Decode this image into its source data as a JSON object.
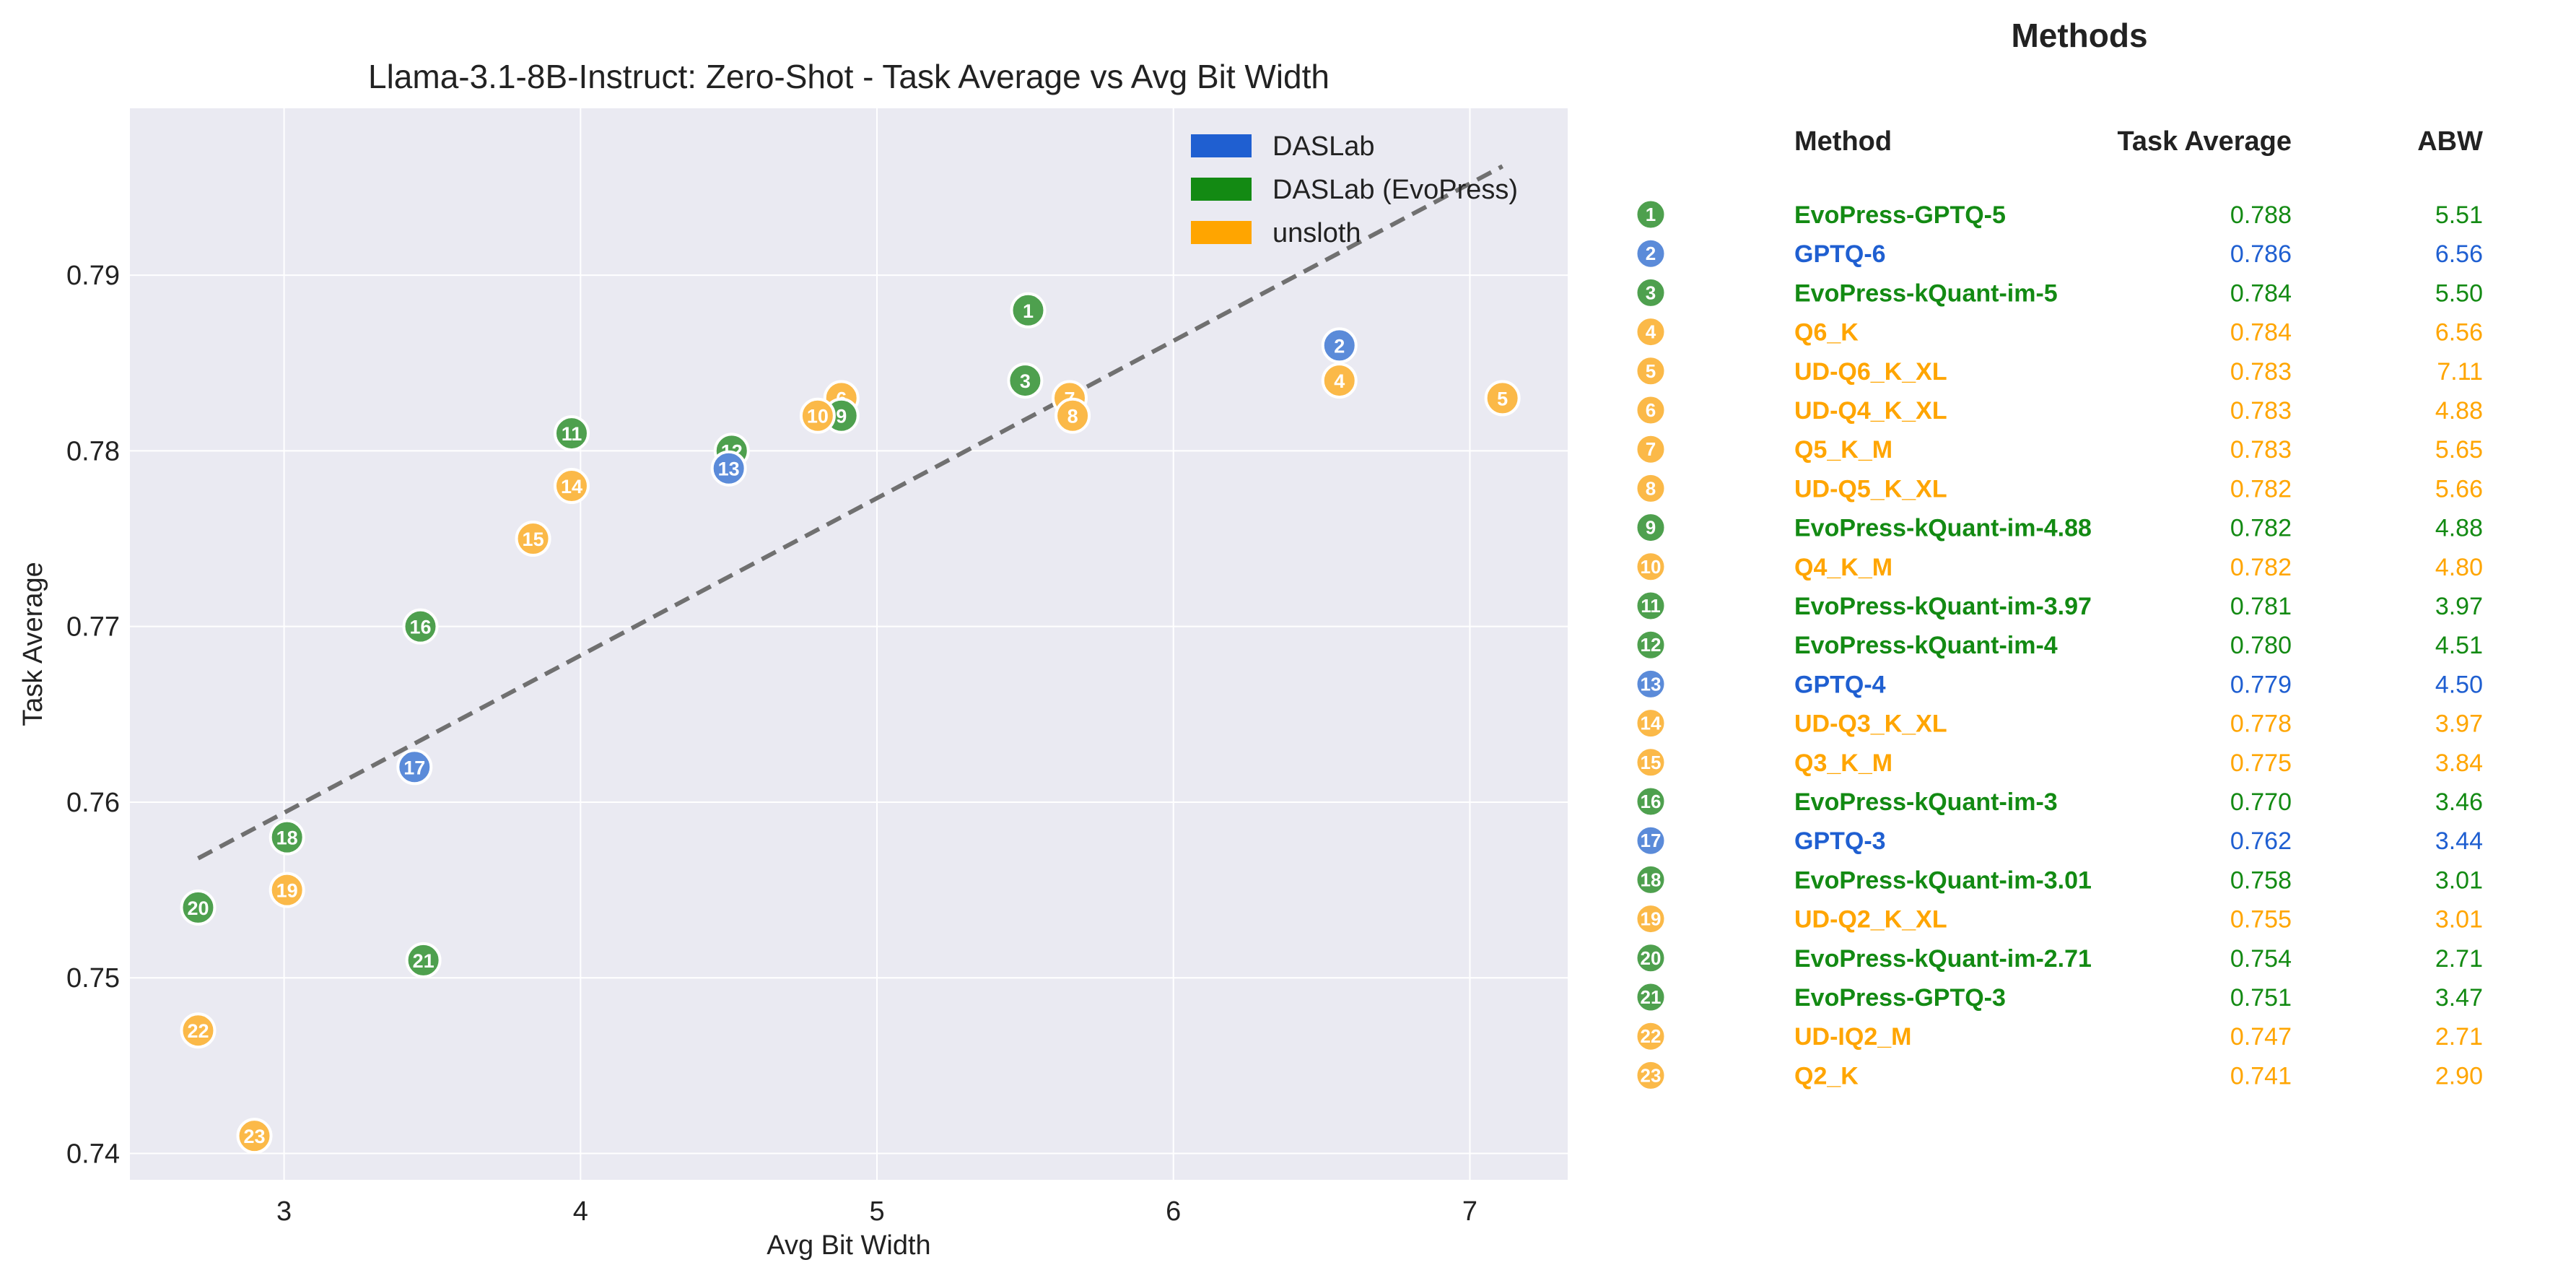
{
  "chart_data": {
    "type": "scatter",
    "title": "Llama-3.1-8B-Instruct: Zero-Shot - Task Average vs Avg Bit Width",
    "xlabel": "Avg Bit Width",
    "ylabel": "Task Average",
    "xlim": [
      2.48,
      7.33
    ],
    "ylim": [
      0.7385,
      0.7995
    ],
    "xticks": [
      3,
      4,
      5,
      6,
      7
    ],
    "yticks": [
      0.74,
      0.75,
      0.76,
      0.77,
      0.78,
      0.79
    ],
    "grid": true,
    "legend_position": "top-right",
    "legend": [
      {
        "label": "DASLab",
        "color": "#1f5fd1"
      },
      {
        "label": "DASLab (EvoPress)",
        "color": "#138a13"
      },
      {
        "label": "unsloth",
        "color": "#ffa500"
      }
    ],
    "trend_line": {
      "x": [
        2.71,
        7.11
      ],
      "y": [
        0.7568,
        0.7962
      ],
      "style": "dashed"
    },
    "points": [
      {
        "id": "1",
        "method": "EvoPress-GPTQ-5",
        "group": "DASLab (EvoPress)",
        "x": 5.51,
        "y": 0.788
      },
      {
        "id": "2",
        "method": "GPTQ-6",
        "group": "DASLab",
        "x": 6.56,
        "y": 0.786
      },
      {
        "id": "3",
        "method": "EvoPress-kQuant-im-5",
        "group": "DASLab (EvoPress)",
        "x": 5.5,
        "y": 0.784
      },
      {
        "id": "4",
        "method": "Q6_K",
        "group": "unsloth",
        "x": 6.56,
        "y": 0.784
      },
      {
        "id": "5",
        "method": "UD-Q6_K_XL",
        "group": "unsloth",
        "x": 7.11,
        "y": 0.783
      },
      {
        "id": "6",
        "method": "UD-Q4_K_XL",
        "group": "unsloth",
        "x": 4.88,
        "y": 0.783
      },
      {
        "id": "7",
        "method": "Q5_K_M",
        "group": "unsloth",
        "x": 5.65,
        "y": 0.783
      },
      {
        "id": "8",
        "method": "UD-Q5_K_XL",
        "group": "unsloth",
        "x": 5.66,
        "y": 0.782
      },
      {
        "id": "9",
        "method": "EvoPress-kQuant-im-4.88",
        "group": "DASLab (EvoPress)",
        "x": 4.88,
        "y": 0.782
      },
      {
        "id": "10",
        "method": "Q4_K_M",
        "group": "unsloth",
        "x": 4.8,
        "y": 0.782
      },
      {
        "id": "11",
        "method": "EvoPress-kQuant-im-3.97",
        "group": "DASLab (EvoPress)",
        "x": 3.97,
        "y": 0.781
      },
      {
        "id": "12",
        "method": "EvoPress-kQuant-im-4",
        "group": "DASLab (EvoPress)",
        "x": 4.51,
        "y": 0.78
      },
      {
        "id": "13",
        "method": "GPTQ-4",
        "group": "DASLab",
        "x": 4.5,
        "y": 0.779
      },
      {
        "id": "14",
        "method": "UD-Q3_K_XL",
        "group": "unsloth",
        "x": 3.97,
        "y": 0.778
      },
      {
        "id": "15",
        "method": "Q3_K_M",
        "group": "unsloth",
        "x": 3.84,
        "y": 0.775
      },
      {
        "id": "16",
        "method": "EvoPress-kQuant-im-3",
        "group": "DASLab (EvoPress)",
        "x": 3.46,
        "y": 0.77
      },
      {
        "id": "17",
        "method": "GPTQ-3",
        "group": "DASLab",
        "x": 3.44,
        "y": 0.762
      },
      {
        "id": "18",
        "method": "EvoPress-kQuant-im-3.01",
        "group": "DASLab (EvoPress)",
        "x": 3.01,
        "y": 0.758
      },
      {
        "id": "19",
        "method": "UD-Q2_K_XL",
        "group": "unsloth",
        "x": 3.01,
        "y": 0.755
      },
      {
        "id": "20",
        "method": "EvoPress-kQuant-im-2.71",
        "group": "DASLab (EvoPress)",
        "x": 2.71,
        "y": 0.754
      },
      {
        "id": "21",
        "method": "EvoPress-GPTQ-3",
        "group": "DASLab (EvoPress)",
        "x": 3.47,
        "y": 0.751
      },
      {
        "id": "22",
        "method": "UD-IQ2_M",
        "group": "unsloth",
        "x": 2.71,
        "y": 0.747
      },
      {
        "id": "23",
        "method": "Q2_K",
        "group": "unsloth",
        "x": 2.9,
        "y": 0.741
      }
    ]
  },
  "table": {
    "title": "Methods",
    "headers": {
      "method": "Method",
      "task_average": "Task Average",
      "abw": "ABW"
    },
    "rows": [
      {
        "id": "1",
        "method": "EvoPress-GPTQ-5",
        "group": "DASLab (EvoPress)",
        "task_average": "0.788",
        "abw": "5.51"
      },
      {
        "id": "2",
        "method": "GPTQ-6",
        "group": "DASLab",
        "task_average": "0.786",
        "abw": "6.56"
      },
      {
        "id": "3",
        "method": "EvoPress-kQuant-im-5",
        "group": "DASLab (EvoPress)",
        "task_average": "0.784",
        "abw": "5.50"
      },
      {
        "id": "4",
        "method": "Q6_K",
        "group": "unsloth",
        "task_average": "0.784",
        "abw": "6.56"
      },
      {
        "id": "5",
        "method": "UD-Q6_K_XL",
        "group": "unsloth",
        "task_average": "0.783",
        "abw": "7.11"
      },
      {
        "id": "6",
        "method": "UD-Q4_K_XL",
        "group": "unsloth",
        "task_average": "0.783",
        "abw": "4.88"
      },
      {
        "id": "7",
        "method": "Q5_K_M",
        "group": "unsloth",
        "task_average": "0.783",
        "abw": "5.65"
      },
      {
        "id": "8",
        "method": "UD-Q5_K_XL",
        "group": "unsloth",
        "task_average": "0.782",
        "abw": "5.66"
      },
      {
        "id": "9",
        "method": "EvoPress-kQuant-im-4.88",
        "group": "DASLab (EvoPress)",
        "task_average": "0.782",
        "abw": "4.88"
      },
      {
        "id": "10",
        "method": "Q4_K_M",
        "group": "unsloth",
        "task_average": "0.782",
        "abw": "4.80"
      },
      {
        "id": "11",
        "method": "EvoPress-kQuant-im-3.97",
        "group": "DASLab (EvoPress)",
        "task_average": "0.781",
        "abw": "3.97"
      },
      {
        "id": "12",
        "method": "EvoPress-kQuant-im-4",
        "group": "DASLab (EvoPress)",
        "task_average": "0.780",
        "abw": "4.51"
      },
      {
        "id": "13",
        "method": "GPTQ-4",
        "group": "DASLab",
        "task_average": "0.779",
        "abw": "4.50"
      },
      {
        "id": "14",
        "method": "UD-Q3_K_XL",
        "group": "unsloth",
        "task_average": "0.778",
        "abw": "3.97"
      },
      {
        "id": "15",
        "method": "Q3_K_M",
        "group": "unsloth",
        "task_average": "0.775",
        "abw": "3.84"
      },
      {
        "id": "16",
        "method": "EvoPress-kQuant-im-3",
        "group": "DASLab (EvoPress)",
        "task_average": "0.770",
        "abw": "3.46"
      },
      {
        "id": "17",
        "method": "GPTQ-3",
        "group": "DASLab",
        "task_average": "0.762",
        "abw": "3.44"
      },
      {
        "id": "18",
        "method": "EvoPress-kQuant-im-3.01",
        "group": "DASLab (EvoPress)",
        "task_average": "0.758",
        "abw": "3.01"
      },
      {
        "id": "19",
        "method": "UD-Q2_K_XL",
        "group": "unsloth",
        "task_average": "0.755",
        "abw": "3.01"
      },
      {
        "id": "20",
        "method": "EvoPress-kQuant-im-2.71",
        "group": "DASLab (EvoPress)",
        "task_average": "0.754",
        "abw": "2.71"
      },
      {
        "id": "21",
        "method": "EvoPress-GPTQ-3",
        "group": "DASLab (EvoPress)",
        "task_average": "0.751",
        "abw": "3.47"
      },
      {
        "id": "22",
        "method": "UD-IQ2_M",
        "group": "unsloth",
        "task_average": "0.747",
        "abw": "2.71"
      },
      {
        "id": "23",
        "method": "Q2_K",
        "group": "unsloth",
        "task_average": "0.741",
        "abw": "2.90"
      }
    ]
  },
  "colors": {
    "DASLab": {
      "marker": "#5b8bd9",
      "text": "#1f5fd1"
    },
    "DASLab (EvoPress)": {
      "marker": "#4ea04e",
      "text": "#138a13"
    },
    "unsloth": {
      "marker": "#fbb948",
      "text": "#ffa500"
    },
    "plot_background": "#eaeaf2",
    "trend_line": "#707070"
  }
}
